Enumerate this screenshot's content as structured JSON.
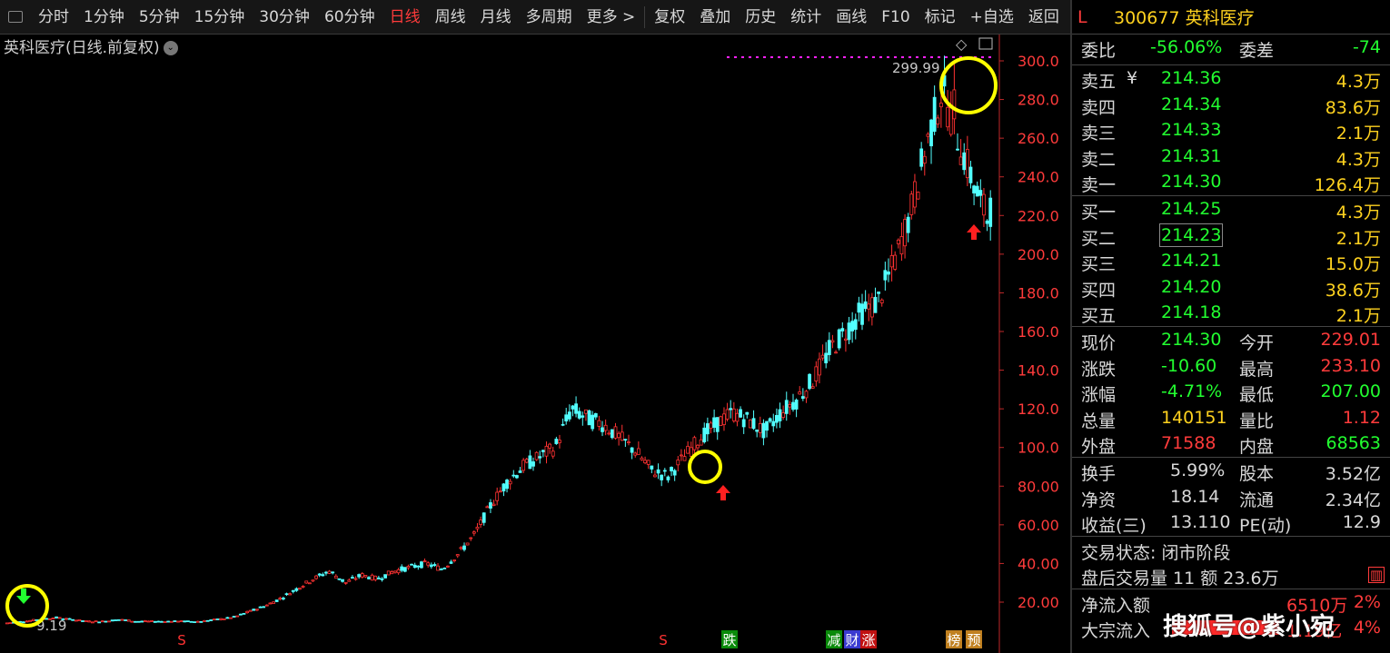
{
  "toolbar": {
    "items": [
      "分时",
      "1分钟",
      "5分钟",
      "15分钟",
      "30分钟",
      "60分钟",
      "日线",
      "周线",
      "月线",
      "多周期",
      "更多 >",
      "复权",
      "叠加",
      "历史",
      "统计",
      "画线",
      "F10",
      "标记",
      "+自选",
      "返回"
    ],
    "active_index": 6
  },
  "chart_title": "英科医疗(日线.前复权)",
  "chart_data": {
    "type": "candlestick",
    "y_ticks": [
      "300.0",
      "280.0",
      "260.0",
      "240.0",
      "220.0",
      "200.0",
      "180.0",
      "160.0",
      "140.0",
      "120.0",
      "100.0",
      "80.00",
      "60.00",
      "40.00",
      "20.00"
    ],
    "ylim": [
      9.19,
      300
    ],
    "high_label": "299.99",
    "low_label": "9.19",
    "close_series": [
      9.2,
      10,
      11,
      12,
      11,
      10,
      10,
      11,
      10,
      10,
      10,
      10,
      10,
      11,
      12,
      15,
      18,
      22,
      27,
      32,
      36,
      30,
      34,
      32,
      36,
      38,
      40,
      37,
      45,
      55,
      70,
      82,
      90,
      95,
      100,
      120,
      115,
      112,
      105,
      98,
      88,
      85,
      95,
      105,
      112,
      118,
      114,
      108,
      118,
      125,
      135,
      150,
      160,
      170,
      175,
      195,
      220,
      255,
      285,
      260,
      235,
      214.3
    ],
    "bottom_markers": [
      "S",
      "S",
      "跌",
      "减",
      "财",
      "涨",
      "榜",
      "预"
    ]
  },
  "panel": {
    "flag": "L",
    "code_name": "300677 英科医疗",
    "weibi_label": "委比",
    "weibi": "-56.06%",
    "weicha_label": "委差",
    "weicha": "-74",
    "asks": [
      {
        "label": "卖五",
        "price": "214.36",
        "vol": "4.3万"
      },
      {
        "label": "卖四",
        "price": "214.34",
        "vol": "83.6万"
      },
      {
        "label": "卖三",
        "price": "214.33",
        "vol": "2.1万"
      },
      {
        "label": "卖二",
        "price": "214.31",
        "vol": "4.3万"
      },
      {
        "label": "卖一",
        "price": "214.30",
        "vol": "126.4万"
      }
    ],
    "bids": [
      {
        "label": "买一",
        "price": "214.25",
        "vol": "4.3万"
      },
      {
        "label": "买二",
        "price": "214.23",
        "vol": "2.1万"
      },
      {
        "label": "买三",
        "price": "214.21",
        "vol": "15.0万"
      },
      {
        "label": "买四",
        "price": "214.20",
        "vol": "38.6万"
      },
      {
        "label": "买五",
        "price": "214.18",
        "vol": "2.1万"
      }
    ],
    "ask_currency": "¥",
    "stats": [
      {
        "l1": "现价",
        "v1": "214.30",
        "c1": "green",
        "l2": "今开",
        "v2": "229.01",
        "c2": "red"
      },
      {
        "l1": "涨跌",
        "v1": "-10.60",
        "c1": "green",
        "l2": "最高",
        "v2": "233.10",
        "c2": "red"
      },
      {
        "l1": "涨幅",
        "v1": "-4.71%",
        "c1": "green",
        "l2": "最低",
        "v2": "207.00",
        "c2": "green"
      },
      {
        "l1": "总量",
        "v1": "140151",
        "c1": "yellow",
        "l2": "量比",
        "v2": "1.12",
        "c2": "red"
      },
      {
        "l1": "外盘",
        "v1": "71588",
        "c1": "red",
        "l2": "内盘",
        "v2": "68563",
        "c2": "green"
      }
    ],
    "stats2": [
      {
        "l1": "换手",
        "v1": "5.99%",
        "l2": "股本",
        "v2": "3.52亿"
      },
      {
        "l1": "净资",
        "v1": "18.14",
        "l2": "流通",
        "v2": "2.34亿"
      },
      {
        "l1": "收益(三)",
        "v1": "13.110",
        "l2": "PE(动)",
        "v2": "12.9"
      }
    ],
    "status": "交易状态: 闭市阶段",
    "after_hours": "盘后交易量 11 额 23.6万",
    "flow1_label": "净流入额",
    "flow1_value": "6510万",
    "flow1_pct": "2%",
    "flow2_label": "大宗流入",
    "flow2_value": "1.19亿",
    "flow2_pct": "4%"
  },
  "watermark": "搜狐号@紫小宛"
}
